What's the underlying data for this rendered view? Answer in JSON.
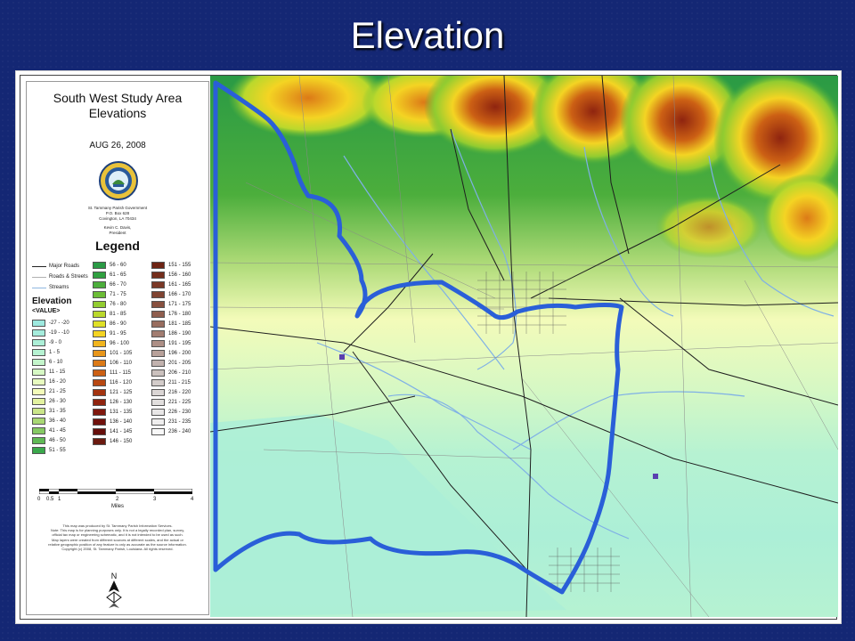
{
  "slide": {
    "title": "Elevation"
  },
  "legend": {
    "title_line1": "South West Study Area",
    "title_line2": "Elevations",
    "date": "AUG 26, 2008",
    "address_lines": [
      "St. Tammany Parish Government",
      "P.O. Box 628",
      "Covington, LA 70434",
      "",
      "Kevin C. Davis,",
      "President"
    ],
    "heading": "Legend",
    "line_items": [
      {
        "label": "Major Roads",
        "color": "#222222"
      },
      {
        "label": "Roads & Streets",
        "color": "#b0b0b0"
      },
      {
        "label": "Streams",
        "color": "#8fb7e0"
      }
    ],
    "elevation_heading": "Elevation",
    "elevation_sub": "<VALUE>",
    "classes_col1": [
      {
        "label": "-27 - -20",
        "color": "#9ee9df"
      },
      {
        "label": "-19 - -10",
        "color": "#a5ecdc"
      },
      {
        "label": "-9 - 0",
        "color": "#acefd7"
      },
      {
        "label": "1 - 5",
        "color": "#b6f2d2"
      },
      {
        "label": "6 - 10",
        "color": "#c4f5cb"
      },
      {
        "label": "11 - 15",
        "color": "#d6f8c4"
      },
      {
        "label": "16 - 20",
        "color": "#e8fbbf"
      },
      {
        "label": "21 - 25",
        "color": "#f3fbb9"
      },
      {
        "label": "26 - 30",
        "color": "#e3f2a0"
      },
      {
        "label": "31 - 35",
        "color": "#cbe68a"
      },
      {
        "label": "36 - 40",
        "color": "#a9d874"
      },
      {
        "label": "41 - 45",
        "color": "#85c963"
      },
      {
        "label": "46 - 50",
        "color": "#5fb955"
      },
      {
        "label": "51 - 55",
        "color": "#3aa84b"
      }
    ],
    "classes_col2": [
      {
        "label": "56 - 60",
        "color": "#2a9a45"
      },
      {
        "label": "61 - 65",
        "color": "#30a040"
      },
      {
        "label": "66 - 70",
        "color": "#4cae3c"
      },
      {
        "label": "71 - 75",
        "color": "#6cbd36"
      },
      {
        "label": "76 - 80",
        "color": "#92cc30"
      },
      {
        "label": "81 - 85",
        "color": "#bad82c"
      },
      {
        "label": "86 - 90",
        "color": "#dfe027"
      },
      {
        "label": "91 - 95",
        "color": "#f4d423"
      },
      {
        "label": "96 - 100",
        "color": "#f1b51e"
      },
      {
        "label": "101 - 105",
        "color": "#e8961a"
      },
      {
        "label": "106 - 110",
        "color": "#dc7a17"
      },
      {
        "label": "111 - 115",
        "color": "#cc6014"
      },
      {
        "label": "116 - 120",
        "color": "#b84812"
      },
      {
        "label": "121 - 125",
        "color": "#a33410"
      },
      {
        "label": "126 - 130",
        "color": "#8f240f"
      },
      {
        "label": "131 - 135",
        "color": "#7f180e"
      },
      {
        "label": "136 - 140",
        "color": "#70120d"
      },
      {
        "label": "141 - 145",
        "color": "#660f0c"
      },
      {
        "label": "146 - 150",
        "color": "#6b1a10"
      }
    ],
    "classes_col3": [
      {
        "label": "151 - 155",
        "color": "#6e2414"
      },
      {
        "label": "156 - 160",
        "color": "#742e1c"
      },
      {
        "label": "161 - 165",
        "color": "#7a3826"
      },
      {
        "label": "166 - 170",
        "color": "#804432"
      },
      {
        "label": "171 - 175",
        "color": "#87503f"
      },
      {
        "label": "176 - 180",
        "color": "#8f5e4e"
      },
      {
        "label": "181 - 185",
        "color": "#986d5f"
      },
      {
        "label": "186 - 190",
        "color": "#a27d71"
      },
      {
        "label": "191 - 195",
        "color": "#ad8f86"
      },
      {
        "label": "196 - 200",
        "color": "#b8a19a"
      },
      {
        "label": "201 - 205",
        "color": "#c2b2ae"
      },
      {
        "label": "206 - 210",
        "color": "#cbc1be"
      },
      {
        "label": "211 - 215",
        "color": "#d3ccca"
      },
      {
        "label": "216 - 220",
        "color": "#dad5d4"
      },
      {
        "label": "221 - 225",
        "color": "#e1dedd"
      },
      {
        "label": "226 - 230",
        "color": "#e8e6e6"
      },
      {
        "label": "231 - 235",
        "color": "#efeeee"
      },
      {
        "label": "236 - 240",
        "color": "#f8f8f8"
      }
    ],
    "scale_ticks": [
      "0",
      "0.5",
      "1",
      "2",
      "3",
      "4"
    ],
    "scale_unit": "Miles",
    "disclaimer": [
      "This map was produced by St. Tammany Parish Information Services.",
      "Note: This map is for planning purposes only. It is not a legally recorded plan, survey,",
      "official tax map or engineering schematic, and it is not intended to be used as such.",
      "Map layers were created from different sources at different scales, and the actual or",
      "relative geographic position of any feature is only as accurate as the source information.",
      "Copyright (c) 2008, St. Tammany Parish, Louisiana. All rights reserved."
    ],
    "north_label": "N"
  },
  "map": {
    "boundary_color": "#2a5fd8",
    "stream_color": "#7fb0e6",
    "road_color": "#1e1e1e"
  }
}
